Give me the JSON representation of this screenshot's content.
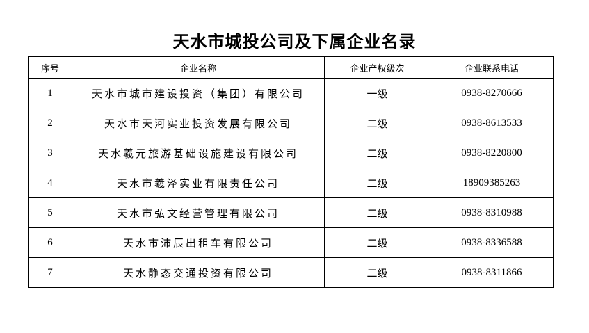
{
  "title": "天水市城投公司及下属企业名录",
  "headers": [
    "序号",
    "企业名称",
    "企业产权级次",
    "企业联系电话"
  ],
  "rows": [
    {
      "no": "1",
      "name": "天水市城市建设投资（集团）有限公司",
      "level": "一级",
      "phone": "0938-8270666"
    },
    {
      "no": "2",
      "name": "天水市天河实业投资发展有限公司",
      "level": "二级",
      "phone": "0938-8613533"
    },
    {
      "no": "3",
      "name": "天水羲元旅游基础设施建设有限公司",
      "level": "二级",
      "phone": "0938-8220800"
    },
    {
      "no": "4",
      "name": "天水市羲泽实业有限责任公司",
      "level": "二级",
      "phone": "18909385263"
    },
    {
      "no": "5",
      "name": "天水市弘文经营管理有限公司",
      "level": "二级",
      "phone": "0938-8310988"
    },
    {
      "no": "6",
      "name": "天水市沛辰出租车有限公司",
      "level": "二级",
      "phone": "0938-8336588"
    },
    {
      "no": "7",
      "name": "天水静态交通投资有限公司",
      "level": "二级",
      "phone": "0938-8311866"
    }
  ]
}
